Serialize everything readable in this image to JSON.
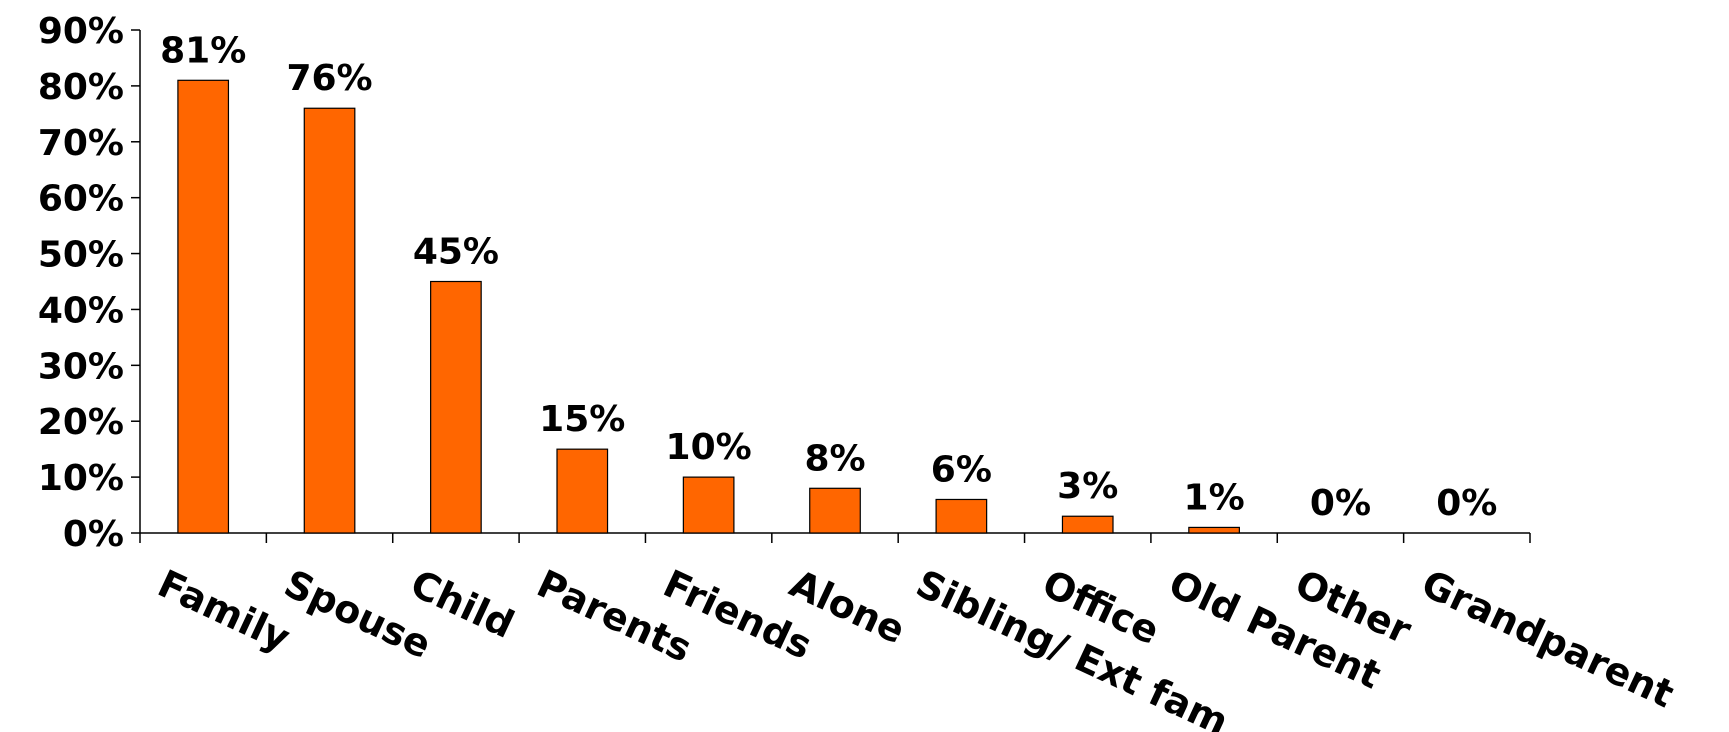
{
  "chart_data": {
    "type": "bar",
    "categories": [
      "Family",
      "Spouse",
      "Child",
      "Parents",
      "Friends",
      "Alone",
      "Sibling/ Ext fam",
      "Office",
      "Old Parent",
      "Other",
      "Grandparent"
    ],
    "values": [
      81,
      76,
      45,
      15,
      10,
      8,
      6,
      3,
      1,
      0,
      0
    ],
    "data_labels": [
      "81%",
      "76%",
      "45%",
      "15%",
      "10%",
      "8%",
      "6%",
      "3%",
      "1%",
      "0%",
      "0%"
    ],
    "y_ticks": [
      0,
      10,
      20,
      30,
      40,
      50,
      60,
      70,
      80,
      90
    ],
    "y_tick_labels": [
      "0%",
      "10%",
      "20%",
      "30%",
      "40%",
      "50%",
      "60%",
      "70%",
      "80%",
      "90%"
    ],
    "ylim": [
      0,
      90
    ],
    "title": "",
    "xlabel": "",
    "ylabel": "",
    "grid": false,
    "legend": "none",
    "bar_color": "#FF6600"
  }
}
